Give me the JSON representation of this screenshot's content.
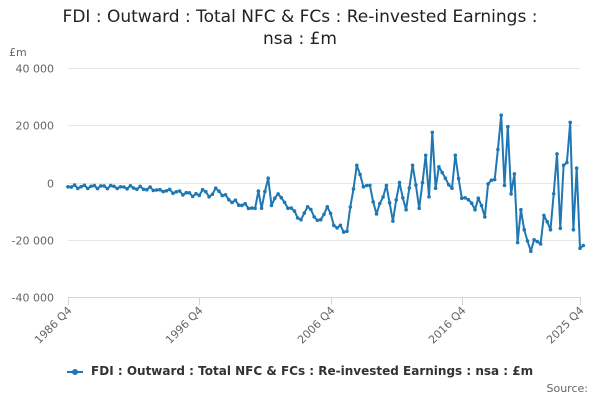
{
  "chart_data": {
    "type": "line",
    "title": "FDI : Outward : Total NFC & FCs : Re-invested Earnings : nsa : £m",
    "title_lines": [
      "FDI : Outward : Total NFC & FCs : Re-invested Earnings :",
      "nsa : £m"
    ],
    "ylabel": "£m",
    "ylim": [
      -40000,
      40000
    ],
    "y_ticks": [
      40000,
      20000,
      0,
      -20000,
      -40000
    ],
    "y_tick_labels": [
      "40 000",
      "20 000",
      "0",
      "-20 000",
      "-40 000"
    ],
    "x_tick_labels": [
      "1986 Q4",
      "1996 Q4",
      "2006 Q4",
      "2016 Q4",
      "2025 Q4"
    ],
    "x_range": [
      "1986 Q4",
      "2025 Q4"
    ],
    "grid": true,
    "legend_position": "bottom",
    "series": [
      {
        "name": "FDI : Outward : Total NFC & FCs : Re-invested Earnings : nsa : £m",
        "color": "#1F77B4",
        "anchors": [
          [
            "1986 Q4",
            -1500
          ],
          [
            "1990 Q4",
            -1500
          ],
          [
            "1993 Q4",
            -2500
          ],
          [
            "1996 Q4",
            -4500
          ],
          [
            "1997 Q1",
            -2500
          ],
          [
            "1997 Q3",
            -5000
          ],
          [
            "1998 Q1",
            -2000
          ],
          [
            "1999 Q1",
            -6000
          ],
          [
            "2000 Q1",
            -8000
          ],
          [
            "2001 Q1",
            -9000
          ],
          [
            "2001 Q2",
            -3000
          ],
          [
            "2001 Q3",
            -9000
          ],
          [
            "2002 Q1",
            1500
          ],
          [
            "2002 Q2",
            -8000
          ],
          [
            "2002 Q4",
            -4000
          ],
          [
            "2003 Q3",
            -9000
          ],
          [
            "2004 Q1",
            -10000
          ],
          [
            "2004 Q3",
            -13000
          ],
          [
            "2005 Q1",
            -8500
          ],
          [
            "2005 Q3",
            -12000
          ],
          [
            "2006 Q1",
            -13000
          ],
          [
            "2006 Q3",
            -8500
          ],
          [
            "2007 Q1",
            -15000
          ],
          [
            "2008 Q1",
            -17000
          ],
          [
            "2008 Q4",
            6000
          ],
          [
            "2009 Q2",
            -1500
          ],
          [
            "2009 Q4",
            -1000
          ],
          [
            "2010 Q2",
            -11000
          ],
          [
            "2011 Q1",
            -1000
          ],
          [
            "2011 Q3",
            -13500
          ],
          [
            "2012 Q1",
            0
          ],
          [
            "2012 Q3",
            -9500
          ],
          [
            "2013 Q1",
            6000
          ],
          [
            "2013 Q3",
            -9000
          ],
          [
            "2014 Q1",
            9500
          ],
          [
            "2014 Q2",
            -5000
          ],
          [
            "2014 Q3",
            17500
          ],
          [
            "2014 Q4",
            -2000
          ],
          [
            "2015 Q1",
            5500
          ],
          [
            "2015 Q3",
            1500
          ],
          [
            "2016 Q1",
            -2000
          ],
          [
            "2016 Q2",
            9500
          ],
          [
            "2016 Q4",
            -5500
          ],
          [
            "2017 Q2",
            -6000
          ],
          [
            "2017 Q4",
            -9500
          ],
          [
            "2018 Q1",
            -5500
          ],
          [
            "2018 Q3",
            -12000
          ],
          [
            "2018 Q4",
            -500
          ],
          [
            "2019 Q2",
            1000
          ],
          [
            "2019 Q4",
            23500
          ],
          [
            "2020 Q1",
            -1000
          ],
          [
            "2020 Q2",
            19500
          ],
          [
            "2020 Q3",
            -4000
          ],
          [
            "2020 Q4",
            3000
          ],
          [
            "2021 Q1",
            -21000
          ],
          [
            "2021 Q2",
            -9500
          ],
          [
            "2021 Q3",
            -16500
          ],
          [
            "2022 Q1",
            -24000
          ],
          [
            "2022 Q2",
            -20000
          ],
          [
            "2022 Q4",
            -21500
          ],
          [
            "2023 Q1",
            -11500
          ],
          [
            "2023 Q3",
            -16500
          ],
          [
            "2024 Q1",
            10000
          ],
          [
            "2024 Q2",
            -16000
          ],
          [
            "2024 Q3",
            6000
          ],
          [
            "2024 Q4",
            7000
          ],
          [
            "2025 Q1",
            21000
          ],
          [
            "2025 Q2",
            -16500
          ],
          [
            "2025 Q3",
            5000
          ],
          [
            "2025 Q4",
            -23000
          ],
          [
            "2026 Q1",
            -22000
          ]
        ]
      }
    ],
    "credits": "Source:"
  }
}
